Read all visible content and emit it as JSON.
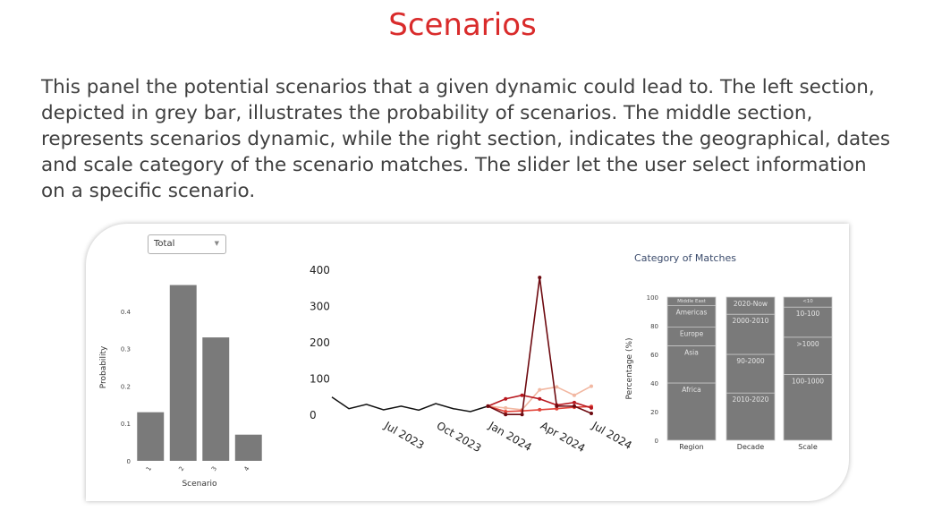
{
  "title": "Scenarios",
  "description": "This panel the potential scenarios that a given dynamic could lead to. The left section, depicted in grey bar, illustrates the probability of scenarios. The middle section, represents scenarios dynamic, while the right section, indicates the geographical, dates and scale category of the scenario matches. The slider let the user select information on a specific scenario.",
  "dropdown": {
    "selected": "Total"
  },
  "colors": {
    "title": "#d92b2b",
    "bar": "#7a7a7a",
    "history": "#111111",
    "scenario_1": "#f2b8a2",
    "scenario_2": "#e2443a",
    "scenario_3": "#b8181f",
    "scenario_4": "#6e0a10",
    "cat_title": "#3a4a6b"
  },
  "chart_data": [
    {
      "type": "bar",
      "categories": [
        "1",
        "2",
        "3",
        "4"
      ],
      "values": [
        0.13,
        0.47,
        0.33,
        0.07
      ],
      "xlabel": "Scenario",
      "ylabel": "Probability",
      "ylim": [
        0,
        0.5
      ],
      "yticks": [
        "0",
        "0.1",
        "0.2",
        "0.3",
        "0.4"
      ]
    },
    {
      "type": "line",
      "yticks": [
        "0",
        "100",
        "200",
        "300",
        "400"
      ],
      "xticks": [
        "Jul 2023",
        "Oct 2023",
        "Jan 2024",
        "Apr 2024",
        "Jul 2024"
      ],
      "ylim": [
        0,
        400
      ],
      "history": {
        "x": [
          "2023-04-01",
          "2023-05-01",
          "2023-06-01",
          "2023-07-01",
          "2023-08-01",
          "2023-09-01",
          "2023-10-01",
          "2023-11-01",
          "2023-12-01",
          "2024-01-01"
        ],
        "y": [
          50,
          18,
          30,
          15,
          25,
          14,
          32,
          18,
          10,
          25
        ]
      },
      "series": [
        {
          "x": [
            "2024-01-01",
            "2024-02-01",
            "2024-03-01",
            "2024-04-01",
            "2024-05-01",
            "2024-06-01",
            "2024-07-01"
          ],
          "y": [
            25,
            20,
            15,
            70,
            78,
            55,
            80
          ]
        },
        {
          "x": [
            "2024-01-01",
            "2024-02-01",
            "2024-03-01",
            "2024-04-01",
            "2024-05-01",
            "2024-06-01",
            "2024-07-01"
          ],
          "y": [
            25,
            10,
            12,
            15,
            18,
            22,
            24
          ]
        },
        {
          "x": [
            "2024-01-01",
            "2024-02-01",
            "2024-03-01",
            "2024-04-01",
            "2024-05-01",
            "2024-06-01",
            "2024-07-01"
          ],
          "y": [
            25,
            45,
            55,
            45,
            28,
            35,
            20
          ]
        },
        {
          "x": [
            "2024-01-01",
            "2024-02-01",
            "2024-03-01",
            "2024-04-01",
            "2024-05-01",
            "2024-06-01",
            "2024-07-01"
          ],
          "y": [
            25,
            2,
            2,
            380,
            25,
            25,
            5
          ]
        }
      ]
    },
    {
      "type": "bar",
      "stacked": true,
      "title": "Category of Matches",
      "ylabel": "Percentage (%)",
      "ylim": [
        0,
        100
      ],
      "yticks": [
        "0",
        "20",
        "40",
        "60",
        "80",
        "100"
      ],
      "categories": [
        "Region",
        "Decade",
        "Scale"
      ],
      "stacks": [
        [
          {
            "label": "Africa",
            "value": 40
          },
          {
            "label": "Asia",
            "value": 26
          },
          {
            "label": "Europe",
            "value": 13
          },
          {
            "label": "Americas",
            "value": 15
          },
          {
            "label": "Middle East",
            "value": 6
          }
        ],
        [
          {
            "label": "2010-2020",
            "value": 33
          },
          {
            "label": "90-2000",
            "value": 27
          },
          {
            "label": "2000-2010",
            "value": 28
          },
          {
            "label": "2020-Now",
            "value": 12
          }
        ],
        [
          {
            "label": "100-1000",
            "value": 46
          },
          {
            "label": ">1000",
            "value": 26
          },
          {
            "label": "10-100",
            "value": 21
          },
          {
            "label": "<10",
            "value": 7
          }
        ]
      ]
    }
  ]
}
